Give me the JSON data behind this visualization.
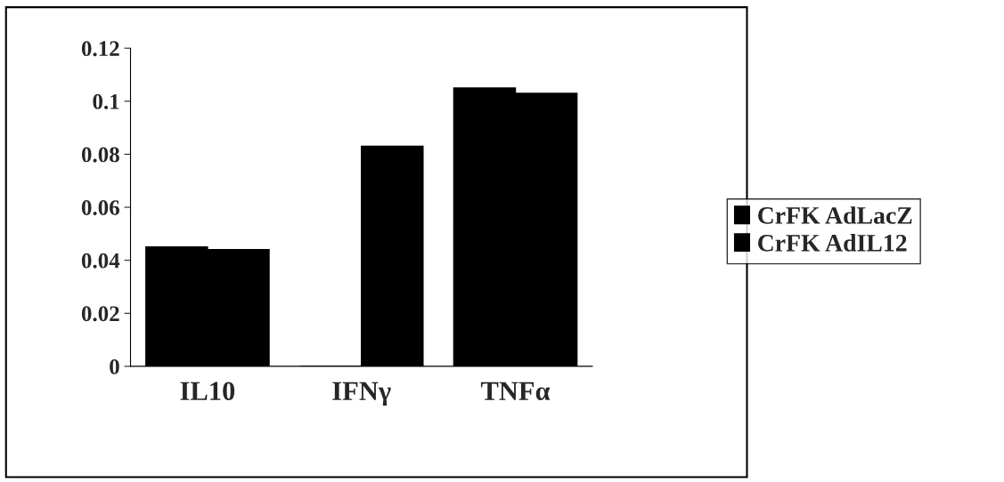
{
  "chart_data": {
    "type": "bar",
    "categories": [
      "IL10",
      "IFNγ",
      "TNFα"
    ],
    "series": [
      {
        "name": "CrFK AdLacZ",
        "color": "#000000",
        "values": [
          0.045,
          0,
          0.105
        ]
      },
      {
        "name": "CrFK AdIL12",
        "color": "#000000",
        "values": [
          0.044,
          0.083,
          0.103
        ]
      }
    ],
    "ylim": [
      0,
      0.12
    ],
    "yticks": [
      0,
      0.02,
      0.04,
      0.06,
      0.08,
      0.1,
      0.12
    ],
    "grid": false,
    "legend": "right"
  }
}
